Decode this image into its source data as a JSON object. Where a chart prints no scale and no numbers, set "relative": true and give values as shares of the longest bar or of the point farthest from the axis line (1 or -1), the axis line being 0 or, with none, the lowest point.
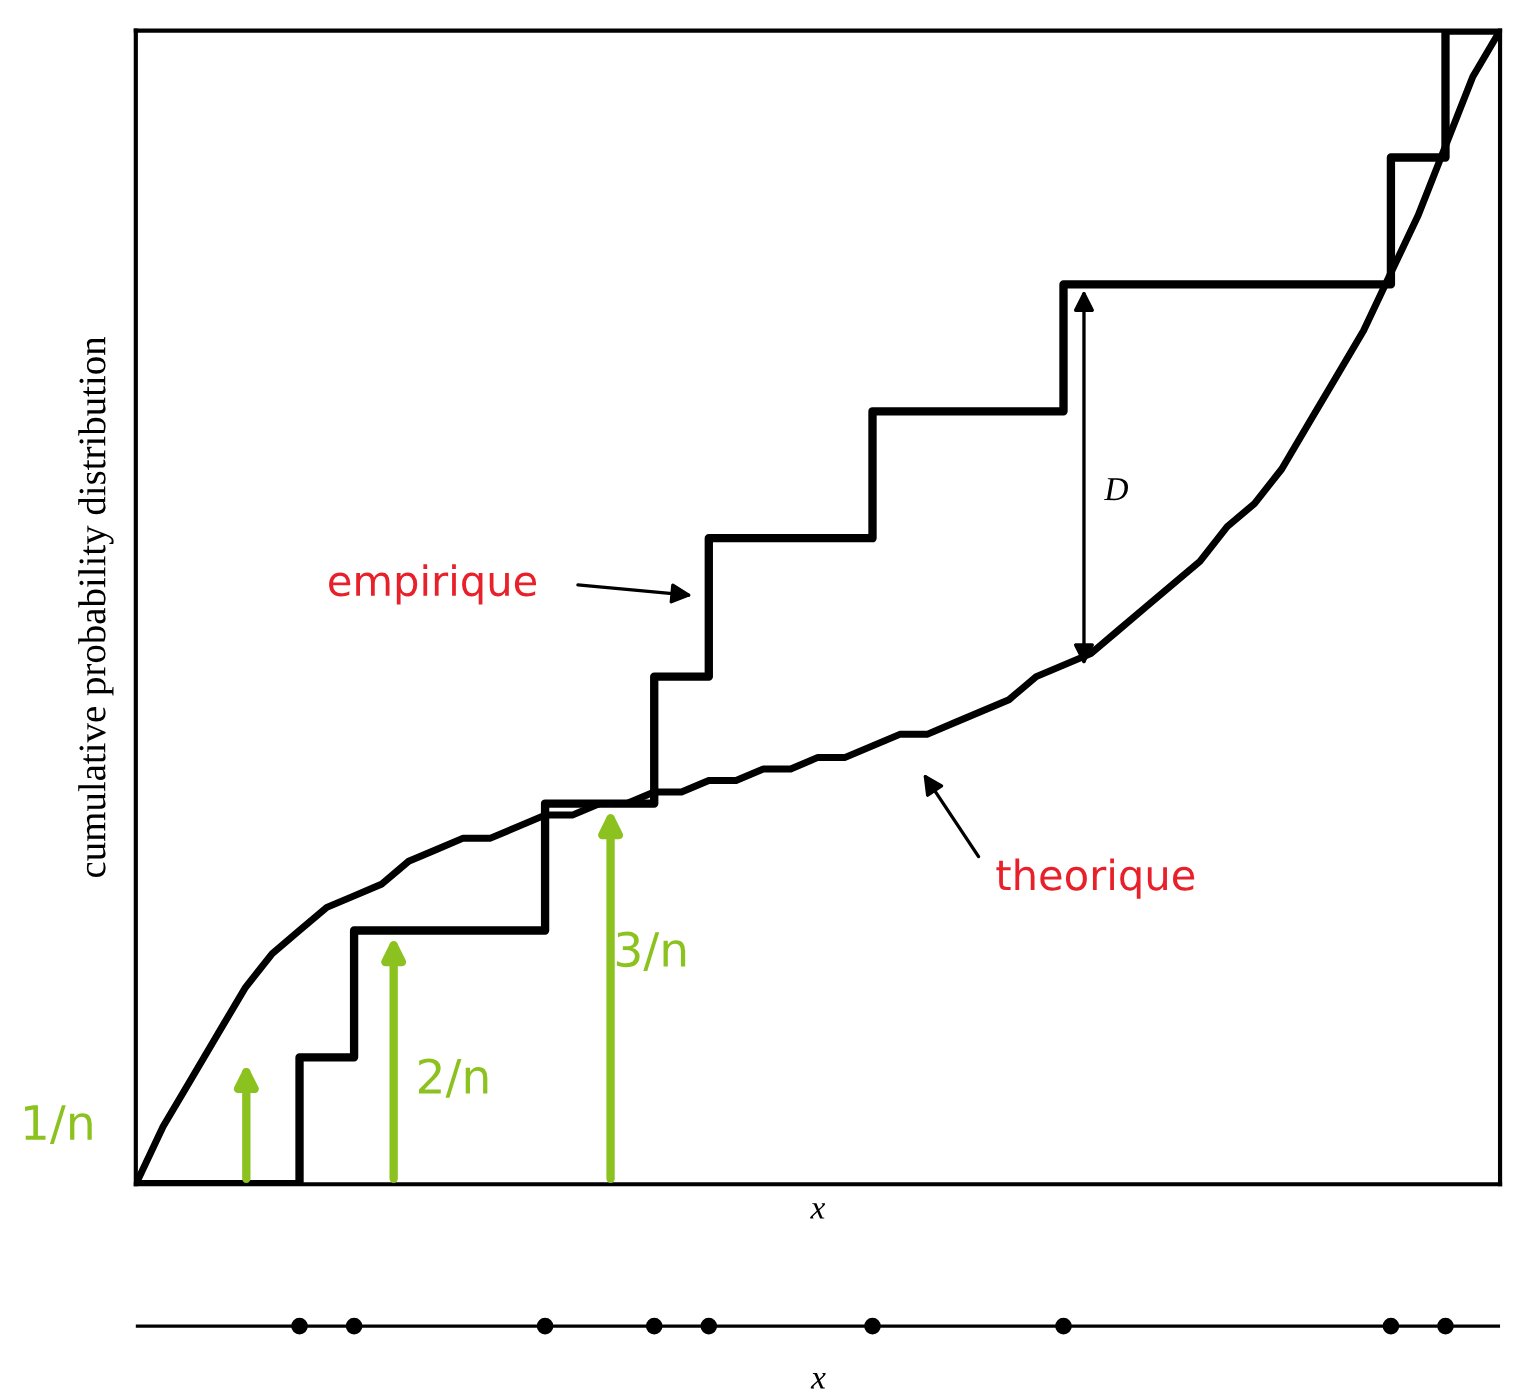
{
  "chart_data": [
    {
      "type": "step",
      "relative": true,
      "xlabel": "x",
      "ylabel": "cumulative probability distribution",
      "categories": [
        null,
        null,
        null,
        null,
        null,
        null,
        null,
        null,
        null,
        null,
        null,
        null,
        null,
        null,
        null,
        null,
        null,
        null,
        null,
        null,
        null,
        null,
        null,
        null,
        null,
        null,
        null,
        null,
        null,
        null,
        null,
        null,
        null,
        null,
        null,
        null,
        null,
        null,
        null,
        null,
        null,
        null,
        null,
        null,
        null,
        null,
        null,
        null,
        null,
        null,
        null
      ],
      "series": [
        {
          "color": "#000000",
          "values": [
            0,
            0,
            0,
            0,
            0,
            0,
            0.11,
            0.11,
            0.22,
            0.22,
            0.22,
            0.22,
            0.22,
            0.22,
            0.22,
            0.33,
            0.33,
            0.33,
            0.33,
            0.44,
            0.44,
            0.56,
            0.56,
            0.56,
            0.56,
            0.56,
            0.56,
            0.67,
            0.67,
            0.67,
            0.67,
            0.67,
            0.67,
            0.67,
            0.78,
            0.78,
            0.78,
            0.78,
            0.78,
            0.78,
            0.78,
            0.78,
            0.78,
            0.78,
            0.78,
            0.78,
            0.89,
            0.89,
            1,
            1,
            1
          ]
        },
        {
          "type": "line",
          "color": "#000000",
          "values": [
            0,
            0.05,
            0.09,
            0.13,
            0.17,
            0.2,
            0.22,
            0.24,
            0.25,
            0.26,
            0.28,
            0.29,
            0.3,
            0.3,
            0.31,
            0.32,
            0.32,
            0.33,
            0.33,
            0.34,
            0.34,
            0.35,
            0.35,
            0.36,
            0.36,
            0.37,
            0.37,
            0.38,
            0.39,
            0.39,
            0.4,
            0.41,
            0.42,
            0.44,
            0.45,
            0.46,
            0.48,
            0.5,
            0.52,
            0.54,
            0.57,
            0.59,
            0.62,
            0.66,
            0.7,
            0.74,
            0.79,
            0.84,
            0.9,
            0.96,
            1
          ]
        }
      ],
      "annotations": [
        "empirique",
        "theorique",
        "D",
        "1/n",
        "2/n",
        "3/n",
        "x"
      ]
    }
  ]
}
